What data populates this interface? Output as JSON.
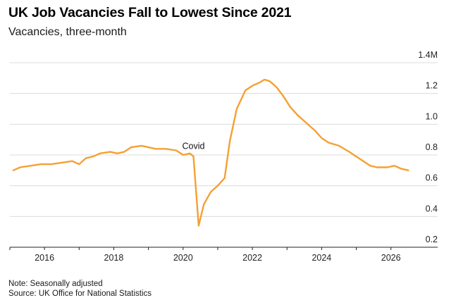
{
  "title": "UK Job Vacancies Fall to Lowest Since 2021",
  "subtitle": "Vacancies, three-month",
  "notes": {
    "note": "Note: Seasonally adjusted",
    "source": "Source: UK Office for National Statistics"
  },
  "chart_data": {
    "type": "line",
    "title": "UK Job Vacancies Fall to Lowest Since 2021",
    "subtitle": "Vacancies, three-month",
    "xlabel": "",
    "ylabel": "",
    "xlim": [
      2015.0,
      2026.8
    ],
    "ylim": [
      0.2,
      1.4
    ],
    "x_ticks": [
      2016,
      2018,
      2020,
      2022,
      2024,
      2026
    ],
    "y_ticks": [
      0.2,
      0.4,
      0.6,
      0.8,
      1.0,
      1.2,
      1.4
    ],
    "y_tick_labels": [
      "0.2",
      "0.4",
      "0.6",
      "0.8",
      "1.0",
      "1.2",
      "1.4M"
    ],
    "y_axis_position": "right",
    "grid": "horizontal",
    "line_color": "#f5a032",
    "annotation": {
      "text": "Covid",
      "x": 2020.3,
      "y": 0.84
    },
    "series": [
      {
        "name": "",
        "x": [
          2015.1,
          2015.3,
          2015.6,
          2015.9,
          2016.2,
          2016.5,
          2016.8,
          2017.0,
          2017.2,
          2017.4,
          2017.6,
          2017.9,
          2018.1,
          2018.3,
          2018.5,
          2018.8,
          2019.0,
          2019.2,
          2019.5,
          2019.8,
          2020.0,
          2020.2,
          2020.3,
          2020.45,
          2020.6,
          2020.8,
          2021.0,
          2021.2,
          2021.35,
          2021.55,
          2021.8,
          2022.0,
          2022.2,
          2022.35,
          2022.5,
          2022.7,
          2022.9,
          2023.1,
          2023.3,
          2023.5,
          2023.8,
          2024.0,
          2024.2,
          2024.5,
          2024.8,
          2025.0,
          2025.2,
          2025.4,
          2025.6,
          2025.9,
          2026.1,
          2026.3,
          2026.5
        ],
        "values": [
          0.7,
          0.72,
          0.73,
          0.74,
          0.74,
          0.75,
          0.76,
          0.74,
          0.78,
          0.79,
          0.81,
          0.82,
          0.81,
          0.82,
          0.85,
          0.86,
          0.85,
          0.84,
          0.84,
          0.83,
          0.8,
          0.81,
          0.79,
          0.34,
          0.48,
          0.56,
          0.6,
          0.65,
          0.89,
          1.1,
          1.22,
          1.25,
          1.27,
          1.29,
          1.28,
          1.24,
          1.18,
          1.11,
          1.06,
          1.02,
          0.96,
          0.91,
          0.88,
          0.86,
          0.82,
          0.79,
          0.76,
          0.73,
          0.72,
          0.72,
          0.73,
          0.71,
          0.7
        ]
      }
    ]
  }
}
